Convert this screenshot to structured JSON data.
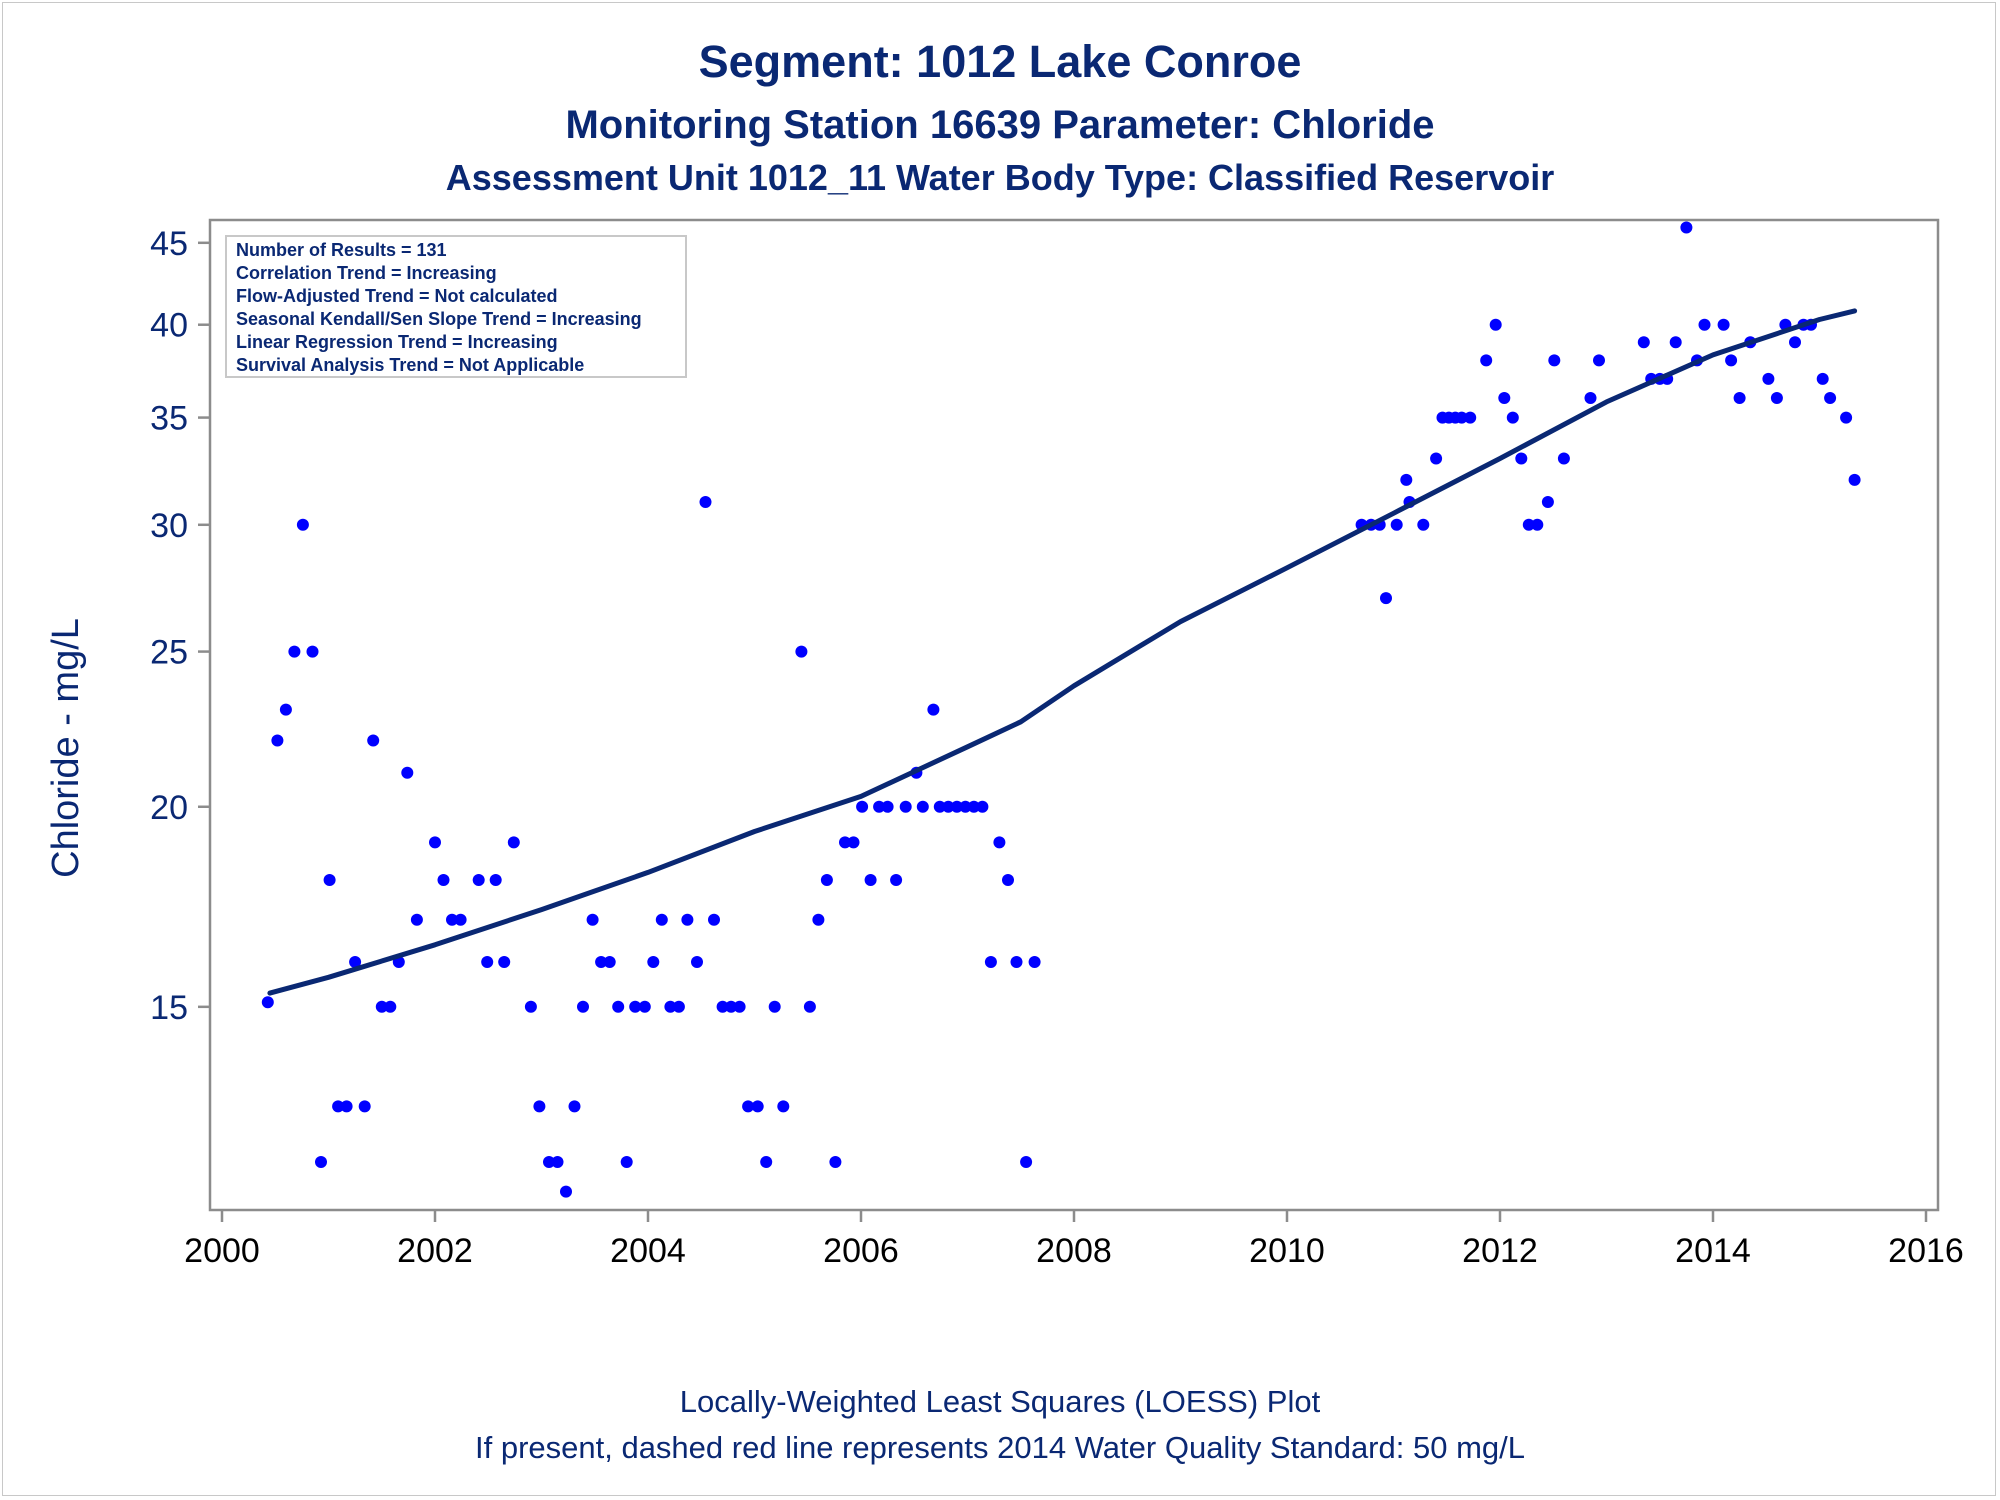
{
  "chart_data": {
    "type": "scatter",
    "title": "Segment: 1012  Lake Conroe",
    "subtitle": "Monitoring Station 16639 Parameter: Chloride",
    "subtitle2": "Assessment Unit 1012_11   Water Body Type: Classified Reservoir",
    "xlabel": "",
    "ylabel": "Chloride - mg/L",
    "xlim": [
      2000,
      2016
    ],
    "ylim": [
      11.2,
      46.5
    ],
    "y_scale": "log",
    "x_ticks": [
      "2000",
      "2002",
      "2004",
      "2006",
      "2008",
      "2010",
      "2012",
      "2014",
      "2016"
    ],
    "y_ticks": [
      "15",
      "20",
      "25",
      "30",
      "35",
      "40",
      "45"
    ],
    "grid": false,
    "stats_box": {
      "placement": "top-left",
      "lines": [
        "Number of Results = 131",
        "Correlation Trend = Increasing",
        "Flow-Adjusted Trend = Not calculated",
        "Seasonal Kendall/Sen Slope Trend = Increasing",
        "Linear Regression Trend = Increasing",
        "Survival Analysis Trend = Not Applicable"
      ]
    },
    "footnote1": "Locally-Weighted Least Squares (LOESS) Plot",
    "footnote2": "If present, dashed red line represents 2014 Water Quality Standard: 50     mg/L",
    "colors": {
      "points": "#0000ff",
      "loess": "#0a2873",
      "text": "#0a2873",
      "axis": "#8c8c8c"
    },
    "series": [
      {
        "type": "scatter",
        "points": [
          [
            2000.43,
            15.1
          ],
          [
            2000.52,
            22
          ],
          [
            2000.6,
            23
          ],
          [
            2000.68,
            25
          ],
          [
            2000.76,
            30
          ],
          [
            2000.85,
            25
          ],
          [
            2000.93,
            12
          ],
          [
            2001.01,
            18
          ],
          [
            2001.09,
            13
          ],
          [
            2001.17,
            13
          ],
          [
            2001.25,
            16
          ],
          [
            2001.34,
            13
          ],
          [
            2001.42,
            22
          ],
          [
            2001.5,
            15
          ],
          [
            2001.58,
            15
          ],
          [
            2001.66,
            16
          ],
          [
            2001.74,
            21
          ],
          [
            2001.83,
            17
          ],
          [
            2002.0,
            19
          ],
          [
            2002.08,
            18
          ],
          [
            2002.16,
            17
          ],
          [
            2002.24,
            17
          ],
          [
            2002.41,
            18
          ],
          [
            2002.49,
            16
          ],
          [
            2002.57,
            18
          ],
          [
            2002.65,
            16
          ],
          [
            2002.74,
            19
          ],
          [
            2002.9,
            15
          ],
          [
            2002.98,
            13
          ],
          [
            2003.07,
            12
          ],
          [
            2003.15,
            12
          ],
          [
            2003.23,
            11.5
          ],
          [
            2003.31,
            13
          ],
          [
            2003.39,
            15
          ],
          [
            2003.48,
            17
          ],
          [
            2003.56,
            16
          ],
          [
            2003.64,
            16
          ],
          [
            2003.72,
            15
          ],
          [
            2003.8,
            12
          ],
          [
            2003.88,
            15
          ],
          [
            2003.97,
            15
          ],
          [
            2004.05,
            16
          ],
          [
            2004.13,
            17
          ],
          [
            2004.21,
            15
          ],
          [
            2004.29,
            15
          ],
          [
            2004.37,
            17
          ],
          [
            2004.46,
            16
          ],
          [
            2004.54,
            31
          ],
          [
            2004.62,
            17
          ],
          [
            2004.7,
            15
          ],
          [
            2004.78,
            15
          ],
          [
            2004.86,
            15
          ],
          [
            2004.94,
            13
          ],
          [
            2005.03,
            13
          ],
          [
            2005.11,
            12
          ],
          [
            2005.19,
            15
          ],
          [
            2005.27,
            13
          ],
          [
            2005.44,
            25
          ],
          [
            2005.52,
            15
          ],
          [
            2005.6,
            17
          ],
          [
            2005.68,
            18
          ],
          [
            2005.76,
            12
          ],
          [
            2005.85,
            19
          ],
          [
            2005.93,
            19
          ],
          [
            2006.01,
            20
          ],
          [
            2006.09,
            18
          ],
          [
            2006.17,
            20
          ],
          [
            2006.25,
            20
          ],
          [
            2006.33,
            18
          ],
          [
            2006.42,
            20
          ],
          [
            2006.52,
            21
          ],
          [
            2006.58,
            20
          ],
          [
            2006.68,
            23
          ],
          [
            2006.74,
            20
          ],
          [
            2006.82,
            20
          ],
          [
            2006.9,
            20
          ],
          [
            2006.98,
            20
          ],
          [
            2007.06,
            20
          ],
          [
            2007.14,
            20
          ],
          [
            2007.22,
            16
          ],
          [
            2007.3,
            19
          ],
          [
            2007.38,
            18
          ],
          [
            2007.46,
            16
          ],
          [
            2007.55,
            12
          ],
          [
            2007.63,
            16
          ],
          [
            2010.7,
            30
          ],
          [
            2010.79,
            30
          ],
          [
            2010.87,
            30
          ],
          [
            2010.93,
            27
          ],
          [
            2011.03,
            30
          ],
          [
            2011.12,
            32
          ],
          [
            2011.15,
            31
          ],
          [
            2011.28,
            30
          ],
          [
            2011.4,
            33
          ],
          [
            2011.46,
            35
          ],
          [
            2011.52,
            35
          ],
          [
            2011.58,
            35
          ],
          [
            2011.64,
            35
          ],
          [
            2011.72,
            35
          ],
          [
            2011.87,
            38
          ],
          [
            2011.96,
            40
          ],
          [
            2012.04,
            36
          ],
          [
            2012.12,
            35
          ],
          [
            2012.2,
            33
          ],
          [
            2012.27,
            30
          ],
          [
            2012.35,
            30
          ],
          [
            2012.45,
            31
          ],
          [
            2012.51,
            38
          ],
          [
            2012.6,
            33
          ],
          [
            2012.85,
            36
          ],
          [
            2012.93,
            38
          ],
          [
            2013.35,
            39
          ],
          [
            2013.42,
            37
          ],
          [
            2013.5,
            37
          ],
          [
            2013.57,
            37
          ],
          [
            2013.65,
            39
          ],
          [
            2013.75,
            46
          ],
          [
            2013.85,
            38
          ],
          [
            2013.92,
            40
          ],
          [
            2014.1,
            40
          ],
          [
            2014.17,
            38
          ],
          [
            2014.25,
            36
          ],
          [
            2014.35,
            39
          ],
          [
            2014.52,
            37
          ],
          [
            2014.6,
            36
          ],
          [
            2014.68,
            40
          ],
          [
            2014.77,
            39
          ],
          [
            2014.85,
            40
          ],
          [
            2014.92,
            40
          ],
          [
            2015.03,
            37
          ],
          [
            2015.1,
            36
          ],
          [
            2015.25,
            35
          ],
          [
            2015.33,
            32
          ]
        ]
      },
      {
        "type": "line",
        "points": [
          [
            2000.45,
            15.3
          ],
          [
            2001.0,
            15.65
          ],
          [
            2002.0,
            16.4
          ],
          [
            2003.0,
            17.25
          ],
          [
            2004.0,
            18.2
          ],
          [
            2005.0,
            19.3
          ],
          [
            2006.0,
            20.3
          ],
          [
            2007.0,
            21.8
          ],
          [
            2007.5,
            22.6
          ],
          [
            2008.0,
            23.8
          ],
          [
            2009.0,
            26.1
          ],
          [
            2010.0,
            28.2
          ],
          [
            2011.0,
            30.5
          ],
          [
            2012.0,
            33.0
          ],
          [
            2013.0,
            35.8
          ],
          [
            2014.0,
            38.3
          ],
          [
            2015.0,
            40.3
          ],
          [
            2015.33,
            40.8
          ]
        ]
      }
    ]
  }
}
